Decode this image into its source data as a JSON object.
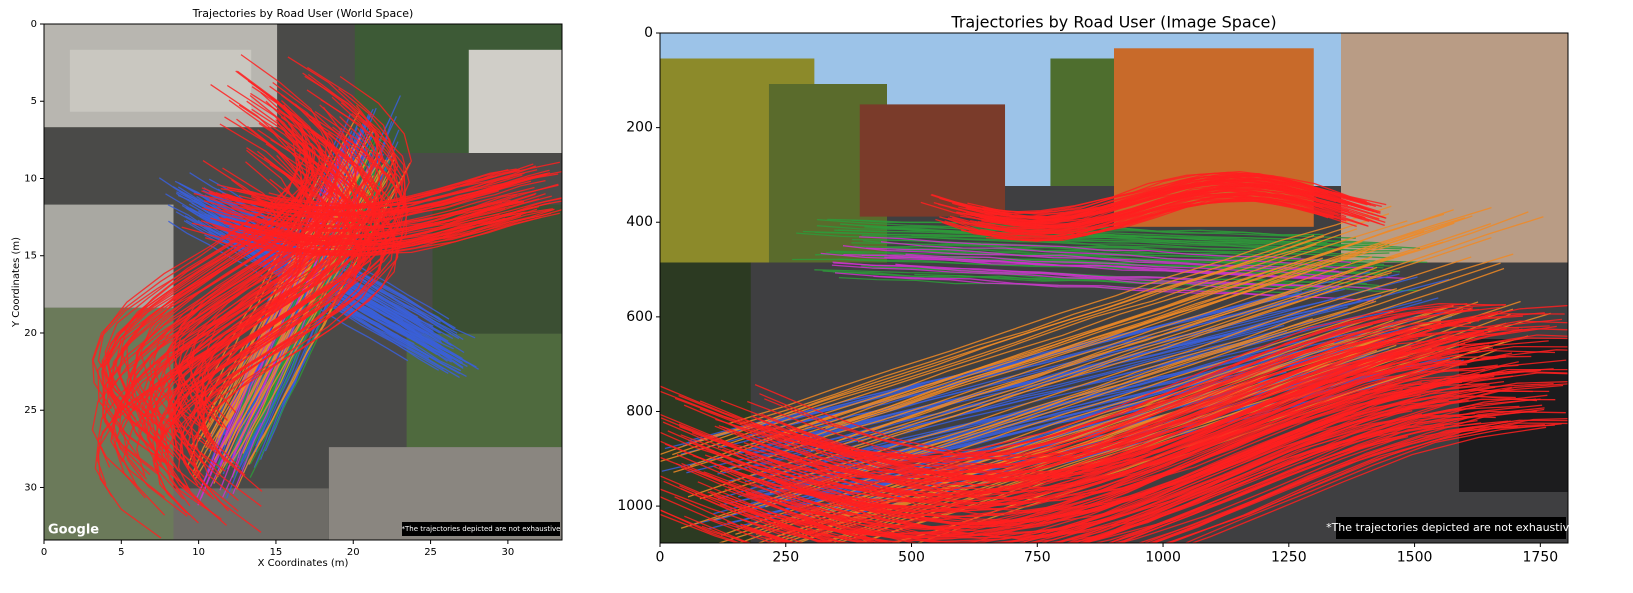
{
  "chart_data": [
    {
      "type": "image",
      "title": "Trajectories by Road User (World Space)",
      "x_label": "X Coordinates (m)",
      "y_label": "Y Coordinates (m)",
      "xlim": [
        0,
        33.5
      ],
      "ylim": [
        33.4,
        0
      ],
      "xticks": [
        0,
        5,
        10,
        15,
        20,
        25,
        30
      ],
      "yticks": [
        0,
        5,
        10,
        15,
        20,
        25,
        30
      ],
      "annotation": "*The trajectories depicted are not exhaustive",
      "watermark": "Google"
    },
    {
      "type": "image",
      "title": "Trajectories by Road User (Image Space)",
      "xlim": [
        0,
        1805
      ],
      "ylim": [
        1078,
        0
      ],
      "xticks": [
        0,
        250,
        500,
        750,
        1000,
        1250,
        1500,
        1750
      ],
      "yticks": [
        0,
        200,
        400,
        600,
        800,
        1000
      ],
      "annotation": "*The trajectories depicted are not exhaustive"
    }
  ]
}
